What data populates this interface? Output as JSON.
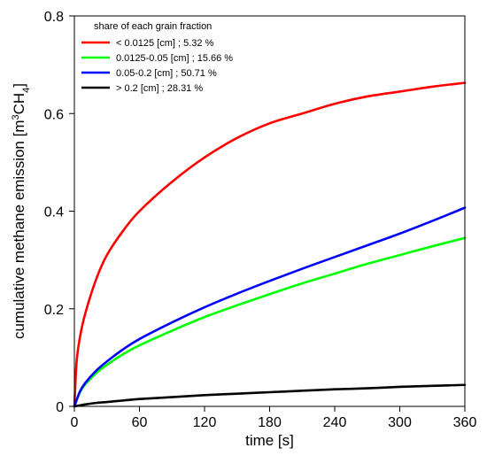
{
  "chart_data": {
    "type": "line",
    "xlabel": "time [s]",
    "ylabel_main": "cumulative methane emission [m",
    "ylabel_sup": "3",
    "ylabel_mid": "CH",
    "ylabel_sub": "4",
    "ylabel_end": "]",
    "xlim": [
      0,
      360
    ],
    "ylim": [
      0,
      0.8
    ],
    "x_ticks": [
      0,
      60,
      120,
      180,
      240,
      300,
      360
    ],
    "y_ticks": [
      0,
      0.2,
      0.4,
      0.6,
      0.8
    ],
    "x_tick_labels": [
      "0",
      "60",
      "120",
      "180",
      "240",
      "300",
      "360"
    ],
    "y_tick_labels": [
      "0",
      "0.2",
      "0.4",
      "0.6",
      "0.8"
    ],
    "grid": false,
    "legend": {
      "title": "share of each grain fraction",
      "placement": "top-left"
    },
    "series": [
      {
        "name": "< 0.0125 [cm] ; 5.32 %",
        "color": "#ff0000",
        "x": [
          0,
          2,
          5,
          10,
          20,
          30,
          45,
          60,
          90,
          120,
          150,
          180,
          210,
          240,
          270,
          300,
          330,
          360
        ],
        "y": [
          0,
          0.09,
          0.14,
          0.19,
          0.26,
          0.31,
          0.36,
          0.4,
          0.46,
          0.51,
          0.55,
          0.58,
          0.6,
          0.62,
          0.635,
          0.645,
          0.655,
          0.663
        ]
      },
      {
        "name": "0.0125-0.05 [cm] ; 15.66 %",
        "color": "#00ff00",
        "x": [
          0,
          5,
          10,
          20,
          30,
          45,
          60,
          90,
          120,
          150,
          180,
          210,
          240,
          270,
          300,
          330,
          360
        ],
        "y": [
          0,
          0.028,
          0.045,
          0.068,
          0.085,
          0.107,
          0.125,
          0.155,
          0.183,
          0.207,
          0.23,
          0.252,
          0.272,
          0.292,
          0.31,
          0.328,
          0.345
        ]
      },
      {
        "name": "0.05-0.2 [cm] ; 50.71 %",
        "color": "#0000ff",
        "x": [
          0,
          5,
          10,
          20,
          30,
          45,
          60,
          90,
          120,
          150,
          180,
          210,
          240,
          270,
          300,
          330,
          360
        ],
        "y": [
          0,
          0.03,
          0.048,
          0.073,
          0.092,
          0.117,
          0.138,
          0.172,
          0.203,
          0.231,
          0.257,
          0.282,
          0.306,
          0.33,
          0.354,
          0.38,
          0.407
        ]
      },
      {
        "name": "> 0.2 [cm] ; 28.31 %",
        "color": "#000000",
        "x": [
          0,
          10,
          20,
          30,
          45,
          60,
          90,
          120,
          150,
          180,
          210,
          240,
          270,
          300,
          330,
          360
        ],
        "y": [
          0,
          0.004,
          0.007,
          0.009,
          0.012,
          0.015,
          0.019,
          0.023,
          0.026,
          0.029,
          0.032,
          0.035,
          0.037,
          0.04,
          0.042,
          0.044
        ]
      }
    ]
  }
}
